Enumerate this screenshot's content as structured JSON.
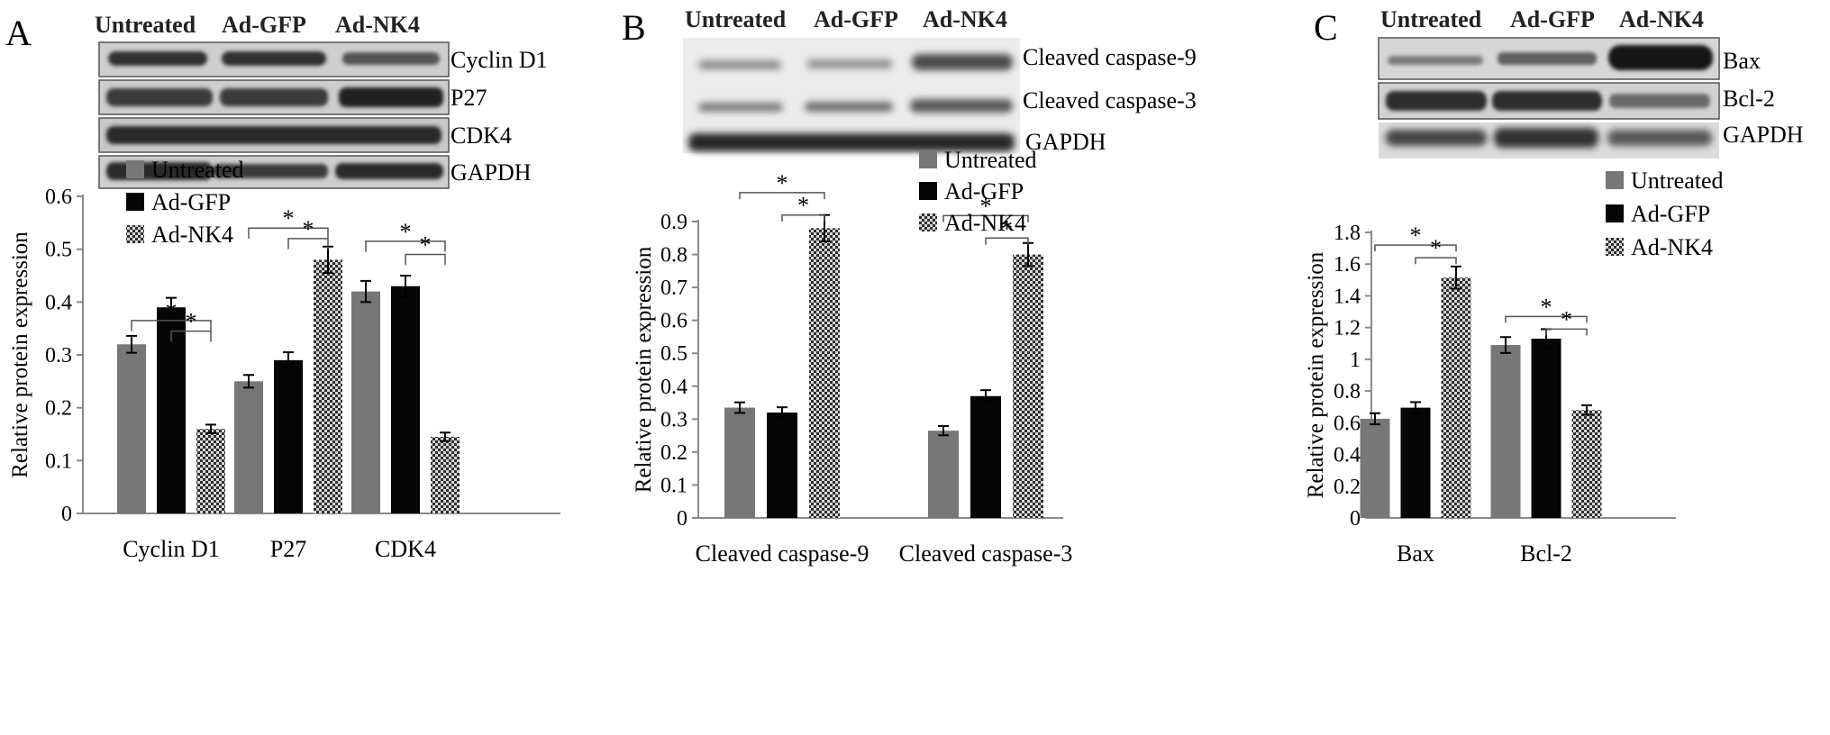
{
  "panels": [
    {
      "letter": "A",
      "blot": {
        "lane_labels": [
          "Untreated",
          "Ad-GFP",
          "Ad-NK4"
        ],
        "bands": [
          "Cyclin D1",
          "P27",
          "CDK4",
          "GAPDH"
        ]
      },
      "chart_data": {
        "type": "bar",
        "categories": [
          "Cyclin D1",
          "P27",
          "CDK4"
        ],
        "series": [
          {
            "name": "Untreated",
            "values": [
              0.32,
              0.25,
              0.42
            ],
            "errors": [
              0.016,
              0.012,
              0.02
            ]
          },
          {
            "name": "Ad-GFP",
            "values": [
              0.39,
              0.29,
              0.43
            ],
            "errors": [
              0.018,
              0.015,
              0.02
            ]
          },
          {
            "name": "Ad-NK4",
            "values": [
              0.16,
              0.48,
              0.145
            ],
            "errors": [
              0.008,
              0.025,
              0.008
            ]
          }
        ],
        "ylabel": "Relative protein expression",
        "ylim": [
          0,
          0.6
        ],
        "yticks": [
          "0",
          "0.1",
          "0.2",
          "0.3",
          "0.4",
          "0.5",
          "0.6"
        ],
        "significance_mark": "*",
        "legend_position": "top-left"
      }
    },
    {
      "letter": "B",
      "blot": {
        "lane_labels": [
          "Untreated",
          "Ad-GFP",
          "Ad-NK4"
        ],
        "bands": [
          "Cleaved caspase-9",
          "Cleaved caspase-3",
          "GAPDH"
        ]
      },
      "chart_data": {
        "type": "bar",
        "categories": [
          "Cleaved caspase-9",
          "Cleaved caspase-3"
        ],
        "series": [
          {
            "name": "Untreated",
            "values": [
              0.335,
              0.265
            ],
            "errors": [
              0.016,
              0.014
            ]
          },
          {
            "name": "Ad-GFP",
            "values": [
              0.32,
              0.37
            ],
            "errors": [
              0.016,
              0.018
            ]
          },
          {
            "name": "Ad-NK4",
            "values": [
              0.88,
              0.8
            ],
            "errors": [
              0.04,
              0.035
            ]
          }
        ],
        "ylabel": "Relative protein expression",
        "ylim": [
          0,
          0.9
        ],
        "yticks": [
          "0",
          "0.1",
          "0.2",
          "0.3",
          "0.4",
          "0.5",
          "0.6",
          "0.7",
          "0.8",
          "0.9"
        ],
        "significance_mark": "*",
        "legend_position": "top-right"
      }
    },
    {
      "letter": "C",
      "blot": {
        "lane_labels": [
          "Untreated",
          "Ad-GFP",
          "Ad-NK4"
        ],
        "bands": [
          "Bax",
          "Bcl-2",
          "GAPDH"
        ]
      },
      "chart_data": {
        "type": "bar",
        "categories": [
          "Bax",
          "Bcl-2"
        ],
        "series": [
          {
            "name": "Untreated",
            "values": [
              0.625,
              1.09
            ],
            "errors": [
              0.035,
              0.05
            ]
          },
          {
            "name": "Ad-GFP",
            "values": [
              0.695,
              1.13
            ],
            "errors": [
              0.035,
              0.06
            ]
          },
          {
            "name": "Ad-NK4",
            "values": [
              1.515,
              0.68
            ],
            "errors": [
              0.07,
              0.03
            ]
          }
        ],
        "ylabel": "Relative protein expression",
        "ylim": [
          0,
          1.8
        ],
        "yticks": [
          "0",
          "0.2",
          "0.4",
          "0.6",
          "0.8",
          "1",
          "1.2",
          "1.4",
          "1.6",
          "1.8"
        ],
        "significance_mark": "*",
        "legend_position": "top-right"
      }
    }
  ],
  "colors": {
    "untreated": "#777777",
    "ad_gfp": "#050505",
    "ad_nk4": "#3a3a3a",
    "axis": "#8a8a8a"
  }
}
